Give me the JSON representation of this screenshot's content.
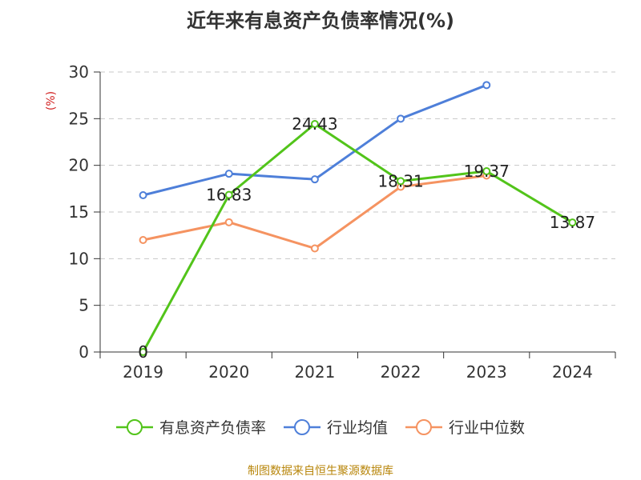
{
  "chart_data": {
    "type": "line",
    "title": "近年来有息资产负债率情况(%)",
    "ylabel": "(%)",
    "xlabel": "",
    "categories": [
      "2019",
      "2020",
      "2021",
      "2022",
      "2023",
      "2024"
    ],
    "ylim": [
      0,
      30
    ],
    "yticks": [
      0,
      5,
      10,
      15,
      20,
      25,
      30
    ],
    "grid": true,
    "legend_position": "bottom",
    "series": [
      {
        "name": "有息资产负债率",
        "color": "#52c41a",
        "values": [
          0,
          16.83,
          24.43,
          18.31,
          19.37,
          13.87
        ],
        "labels": [
          "0",
          "16.83",
          "24.43",
          "18.31",
          "19.37",
          "13.87"
        ]
      },
      {
        "name": "行业均值",
        "color": "#4e7fd9",
        "values": [
          16.8,
          19.1,
          18.5,
          25.0,
          28.6,
          null
        ]
      },
      {
        "name": "行业中位数",
        "color": "#f59361",
        "values": [
          12.0,
          13.9,
          11.1,
          17.7,
          18.9,
          null
        ]
      }
    ]
  },
  "footer": {
    "source": "制图数据来自恒生聚源数据库"
  }
}
